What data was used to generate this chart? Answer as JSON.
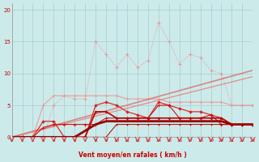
{
  "xlabel": "Vent moyen/en rafales ( km/h )",
  "bg_color": "#cceaea",
  "grid_color": "#aacccc",
  "x": [
    0,
    1,
    2,
    3,
    4,
    5,
    6,
    7,
    8,
    9,
    10,
    11,
    12,
    13,
    14,
    15,
    16,
    17,
    18,
    19,
    20,
    21,
    22,
    23
  ],
  "line_dotted_pink_y": [
    0,
    0,
    0,
    0,
    5,
    6.5,
    6,
    6,
    15,
    13,
    11,
    13,
    11,
    12,
    18,
    15,
    11.5,
    13,
    12.5,
    10.5,
    10,
    5,
    5,
    5
  ],
  "line_solid_pink_y": [
    0,
    0,
    0,
    5,
    6.5,
    6.5,
    6.5,
    6.5,
    6.5,
    6.5,
    6.5,
    6,
    6,
    6,
    6,
    5.5,
    5.5,
    5.5,
    5.5,
    5.5,
    5.5,
    5,
    5,
    5
  ],
  "trend1_x": [
    0,
    23
  ],
  "trend1_y": [
    0,
    9.5
  ],
  "trend2_x": [
    0,
    23
  ],
  "trend2_y": [
    0,
    10.5
  ],
  "line_med_red_y": [
    0,
    0,
    0,
    2.5,
    2.5,
    0,
    0,
    0,
    5,
    5.5,
    5,
    4,
    3.5,
    3,
    5.5,
    5,
    4.5,
    4,
    4,
    3.5,
    3,
    2,
    2,
    2
  ],
  "line_dark1_y": [
    0,
    0,
    0,
    1.5,
    2,
    2,
    2,
    2,
    2,
    3,
    3,
    3,
    3,
    3,
    5,
    5,
    3,
    3,
    3,
    3.5,
    2,
    2,
    2,
    2
  ],
  "line_dark2_y": [
    0,
    0,
    0,
    0,
    0,
    0,
    0,
    0,
    4,
    4,
    3,
    3,
    3,
    3,
    3,
    3,
    3,
    3,
    3,
    3,
    3,
    2,
    2,
    2
  ],
  "line_base_y": [
    0,
    0,
    0,
    0,
    0,
    0,
    0,
    0,
    0,
    0,
    2,
    2,
    2,
    2,
    2,
    2,
    2,
    2,
    2,
    2,
    2,
    2,
    2,
    2
  ],
  "line_thick_y": [
    0,
    0,
    0,
    0,
    0,
    0,
    0,
    1,
    2,
    2.5,
    2.5,
    2.5,
    2.5,
    2.5,
    2.5,
    2.5,
    2.5,
    2.5,
    2.5,
    2.5,
    2.5,
    2,
    2,
    2
  ],
  "ylim": [
    0,
    21
  ],
  "xlim": [
    0,
    23
  ]
}
